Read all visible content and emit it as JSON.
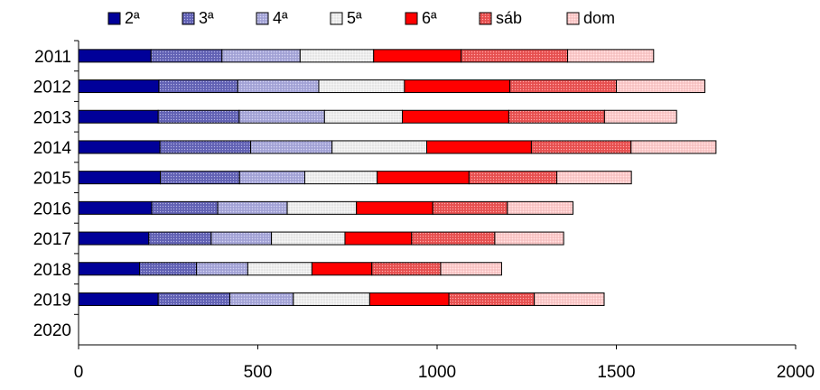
{
  "chart_data": {
    "type": "bar",
    "orientation": "horizontal",
    "stacked": true,
    "title": "",
    "xlabel": "",
    "ylabel": "",
    "xlim": [
      0,
      2000
    ],
    "x_ticks": [
      "0",
      "500",
      "1000",
      "1500",
      "2000"
    ],
    "categories": [
      "2011",
      "2012",
      "2013",
      "2014",
      "2015",
      "2016",
      "2017",
      "2018",
      "2019",
      "2020"
    ],
    "legend_position": "top",
    "grid": false,
    "series": [
      {
        "name": "2ª",
        "color": "#000099",
        "pattern": "solid",
        "values": [
          202,
          224,
          222,
          227,
          228,
          204,
          196,
          170,
          222,
          0
        ]
      },
      {
        "name": "3ª",
        "color": "#6666bb",
        "pattern": "dots",
        "values": [
          198,
          220,
          226,
          253,
          221,
          184,
          174,
          159,
          200,
          0
        ]
      },
      {
        "name": "4ª",
        "color": "#aaaadd",
        "pattern": "dots",
        "values": [
          218,
          226,
          238,
          227,
          182,
          194,
          168,
          143,
          177,
          0
        ]
      },
      {
        "name": "5ª",
        "color": "#f0f0f0",
        "pattern": "dots",
        "values": [
          205,
          239,
          217,
          264,
          202,
          193,
          205,
          179,
          213,
          0
        ]
      },
      {
        "name": "6ª",
        "color": "#ff0000",
        "pattern": "solid",
        "values": [
          244,
          294,
          297,
          292,
          256,
          213,
          186,
          167,
          221,
          0
        ]
      },
      {
        "name": "sáb",
        "color": "#ee5555",
        "pattern": "dots",
        "values": [
          297,
          297,
          267,
          278,
          245,
          208,
          232,
          192,
          238,
          0
        ]
      },
      {
        "name": "dom",
        "color": "#ffcccc",
        "pattern": "dots",
        "values": [
          240,
          247,
          201,
          237,
          208,
          183,
          192,
          170,
          195,
          0
        ]
      }
    ]
  }
}
